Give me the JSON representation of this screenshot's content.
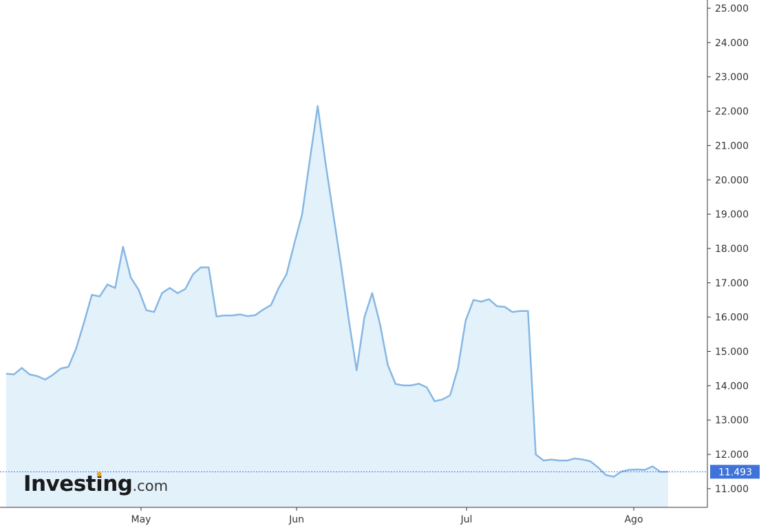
{
  "chart_data": {
    "type": "area",
    "title": "",
    "xlabel": "",
    "ylabel": "",
    "x_tick_labels": [
      "May",
      "Jun",
      "Jul",
      "Ago"
    ],
    "y_ticks": [
      "11.000",
      "12.000",
      "13.000",
      "14.000",
      "15.000",
      "16.000",
      "17.000",
      "18.000",
      "19.000",
      "20.000",
      "21.000",
      "22.000",
      "23.000",
      "24.000",
      "25.000"
    ],
    "ylim": [
      10.4,
      25.0
    ],
    "last_value_label": "11.493",
    "last_value": 11.493,
    "grid": false,
    "colors": {
      "line": "#85b7e3",
      "fill": "#e3f1fb",
      "axis": "#333333",
      "badge": "#3f73d9",
      "logo_dot": "#f4a21c"
    },
    "series": [
      {
        "values": [
          14.35,
          14.33,
          14.52,
          14.33,
          14.28,
          14.18,
          14.32,
          14.5,
          14.55,
          15.1,
          15.85,
          16.65,
          16.6,
          16.95,
          16.85,
          18.05,
          17.15,
          16.8,
          16.2,
          16.15,
          16.7,
          16.85,
          16.7,
          16.82,
          17.25,
          17.45,
          17.45,
          16.02,
          16.05,
          16.05,
          16.08,
          16.03,
          16.06,
          16.22,
          16.35,
          16.85,
          17.25,
          18.15,
          19.0,
          20.6,
          22.15,
          20.5,
          19.0,
          17.5,
          15.9,
          14.45,
          16.0,
          16.7,
          15.8,
          14.6,
          14.05,
          14.01,
          14.01,
          14.06,
          13.95,
          13.55,
          13.6,
          13.72,
          14.5,
          15.9,
          16.5,
          16.45,
          16.52,
          16.32,
          16.3,
          16.15,
          16.18,
          16.18,
          12.0,
          11.82,
          11.85,
          11.82,
          11.82,
          11.88,
          11.85,
          11.8,
          11.62,
          11.4,
          11.35,
          11.5,
          11.55,
          11.56,
          11.55,
          11.65,
          11.49,
          11.493
        ]
      }
    ]
  },
  "logo": {
    "brand": "Investing",
    "tld": ".com"
  }
}
